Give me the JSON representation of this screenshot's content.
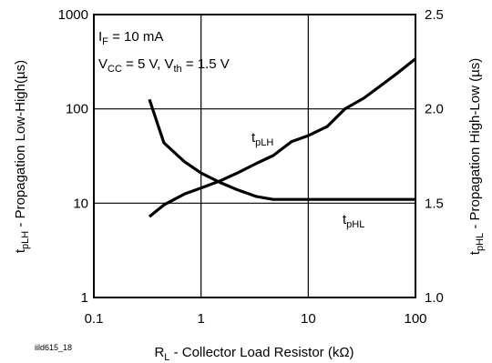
{
  "chart_data": {
    "type": "line",
    "title": "",
    "x_axis": {
      "label_main": "R",
      "label_sub": "L",
      "label_rest": " - Collector Load Resistor (kΩ)",
      "scale": "log",
      "range": [
        0.1,
        100
      ],
      "ticks": [
        0.1,
        1,
        10,
        100
      ],
      "tick_labels": [
        "0.1",
        "1",
        "10",
        "100"
      ]
    },
    "y_left": {
      "label_main": "t",
      "label_sub": "pLH",
      "label_rest": " - Propagation Low-High(µs)",
      "scale": "log",
      "range": [
        1,
        1000
      ],
      "ticks": [
        1,
        10,
        100,
        1000
      ],
      "tick_labels": [
        "1",
        "10",
        "100",
        "1000"
      ]
    },
    "y_right": {
      "label_main": "t",
      "label_sub": "pHL",
      "label_rest": " - Propagation High-Low (µs)",
      "scale": "linear",
      "range": [
        1.0,
        2.5
      ],
      "ticks": [
        1.0,
        1.5,
        2.0,
        2.5
      ],
      "tick_labels": [
        "1.0",
        "1.5",
        "2.0",
        "2.5"
      ]
    },
    "grid": true,
    "conditions": [
      {
        "main": "I",
        "sub": "F",
        "rest": " = 10 mA"
      },
      {
        "parts": [
          {
            "main": "V",
            "sub": "CC",
            "rest": " = 5 V, "
          },
          {
            "main": "V",
            "sub": "th",
            "rest": " = 1.5 V"
          }
        ]
      }
    ],
    "series": [
      {
        "name_main": "t",
        "name_sub": "pLH",
        "axis": "left",
        "x": [
          0.33,
          0.45,
          0.7,
          1.0,
          1.5,
          2.2,
          3.3,
          4.7,
          7.0,
          10,
          15,
          22,
          33,
          47,
          68,
          100
        ],
        "y": [
          7.2,
          9.6,
          12.5,
          14.5,
          17.2,
          21,
          26.5,
          32,
          45,
          52,
          65,
          100,
          130,
          175,
          240,
          340
        ]
      },
      {
        "name_main": "t",
        "name_sub": "pHL",
        "axis": "right",
        "x": [
          0.33,
          0.45,
          0.7,
          1.0,
          1.5,
          2.2,
          3.3,
          4.7,
          7.0,
          10,
          20,
          50,
          100
        ],
        "y": [
          2.05,
          1.82,
          1.72,
          1.66,
          1.61,
          1.57,
          1.535,
          1.52,
          1.52,
          1.52,
          1.52,
          1.52,
          1.52
        ]
      }
    ],
    "figure_tag": "iild615_18"
  }
}
